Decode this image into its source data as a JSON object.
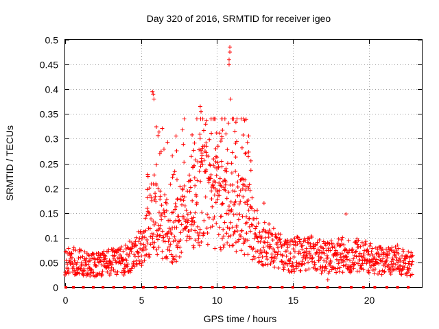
{
  "chart_data": {
    "type": "scatter",
    "title": "Day 320 of 2016, SRMTID for receiver igeo",
    "xlabel": "GPS time / hours",
    "ylabel": "SRMTID / TECUs",
    "xlim": [
      0,
      23.5
    ],
    "ylim": [
      0,
      0.5
    ],
    "grid": true,
    "marker": "+",
    "color": "#ff0000",
    "x_ticks": [
      0,
      5,
      10,
      15,
      20
    ],
    "x_tick_labels": [
      "0",
      "5",
      "10",
      "15",
      "20"
    ],
    "y_ticks": [
      0,
      0.05,
      0.1,
      0.15,
      0.2,
      0.25,
      0.3,
      0.35,
      0.4,
      0.45,
      0.5
    ],
    "y_tick_labels": [
      "0",
      "0.05",
      "0.1",
      "0.15",
      "0.2",
      "0.25",
      "0.3",
      "0.35",
      "0.4",
      "0.45",
      "0.5"
    ],
    "notable_points": [
      {
        "x": 10.85,
        "y": 0.485
      },
      {
        "x": 10.85,
        "y": 0.475
      },
      {
        "x": 10.8,
        "y": 0.46
      },
      {
        "x": 10.8,
        "y": 0.45
      },
      {
        "x": 10.9,
        "y": 0.38
      },
      {
        "x": 5.75,
        "y": 0.395
      },
      {
        "x": 5.8,
        "y": 0.39
      },
      {
        "x": 5.85,
        "y": 0.38
      },
      {
        "x": 8.9,
        "y": 0.365
      },
      {
        "x": 8.95,
        "y": 0.355
      },
      {
        "x": 13.1,
        "y": 0.17
      },
      {
        "x": 18.5,
        "y": 0.148
      },
      {
        "x": 17.3,
        "y": 0.015
      }
    ],
    "baseline_points": [
      {
        "x": 0.05,
        "y": 0
      },
      {
        "x": 0.55,
        "y": 0
      },
      {
        "x": 1.2,
        "y": 0
      },
      {
        "x": 1.85,
        "y": 0
      },
      {
        "x": 2.5,
        "y": 0
      },
      {
        "x": 3.2,
        "y": 0
      },
      {
        "x": 3.9,
        "y": 0
      },
      {
        "x": 4.55,
        "y": 0
      },
      {
        "x": 5.15,
        "y": 0
      },
      {
        "x": 5.95,
        "y": 0
      },
      {
        "x": 6.6,
        "y": 0
      },
      {
        "x": 7.4,
        "y": 0
      },
      {
        "x": 8.2,
        "y": 0
      },
      {
        "x": 8.95,
        "y": 0
      },
      {
        "x": 9.7,
        "y": 0
      },
      {
        "x": 10.45,
        "y": 0
      },
      {
        "x": 11.15,
        "y": 0
      },
      {
        "x": 11.95,
        "y": 0
      },
      {
        "x": 12.7,
        "y": 0
      },
      {
        "x": 13.5,
        "y": 0
      },
      {
        "x": 14.3,
        "y": 0
      },
      {
        "x": 15.0,
        "y": 0
      },
      {
        "x": 15.75,
        "y": 0
      },
      {
        "x": 16.6,
        "y": 0
      },
      {
        "x": 17.3,
        "y": 0
      },
      {
        "x": 18.1,
        "y": 0
      },
      {
        "x": 18.85,
        "y": 0
      },
      {
        "x": 19.65,
        "y": 0
      },
      {
        "x": 20.4,
        "y": 0
      },
      {
        "x": 21.2,
        "y": 0
      },
      {
        "x": 21.9,
        "y": 0
      },
      {
        "x": 22.6,
        "y": 0
      }
    ],
    "trend_profile": [
      {
        "x": 0.0,
        "y": 0.055
      },
      {
        "x": 1.0,
        "y": 0.05
      },
      {
        "x": 2.0,
        "y": 0.045
      },
      {
        "x": 3.0,
        "y": 0.05
      },
      {
        "x": 4.0,
        "y": 0.055
      },
      {
        "x": 5.0,
        "y": 0.08
      },
      {
        "x": 5.6,
        "y": 0.14
      },
      {
        "x": 6.2,
        "y": 0.13
      },
      {
        "x": 7.0,
        "y": 0.1
      },
      {
        "x": 8.0,
        "y": 0.14
      },
      {
        "x": 9.0,
        "y": 0.19
      },
      {
        "x": 10.0,
        "y": 0.17
      },
      {
        "x": 11.0,
        "y": 0.16
      },
      {
        "x": 12.0,
        "y": 0.14
      },
      {
        "x": 13.0,
        "y": 0.09
      },
      {
        "x": 14.0,
        "y": 0.075
      },
      {
        "x": 15.0,
        "y": 0.065
      },
      {
        "x": 16.0,
        "y": 0.07
      },
      {
        "x": 17.0,
        "y": 0.06
      },
      {
        "x": 18.0,
        "y": 0.065
      },
      {
        "x": 19.0,
        "y": 0.065
      },
      {
        "x": 20.0,
        "y": 0.06
      },
      {
        "x": 21.0,
        "y": 0.055
      },
      {
        "x": 22.0,
        "y": 0.055
      },
      {
        "x": 22.9,
        "y": 0.045
      }
    ]
  }
}
